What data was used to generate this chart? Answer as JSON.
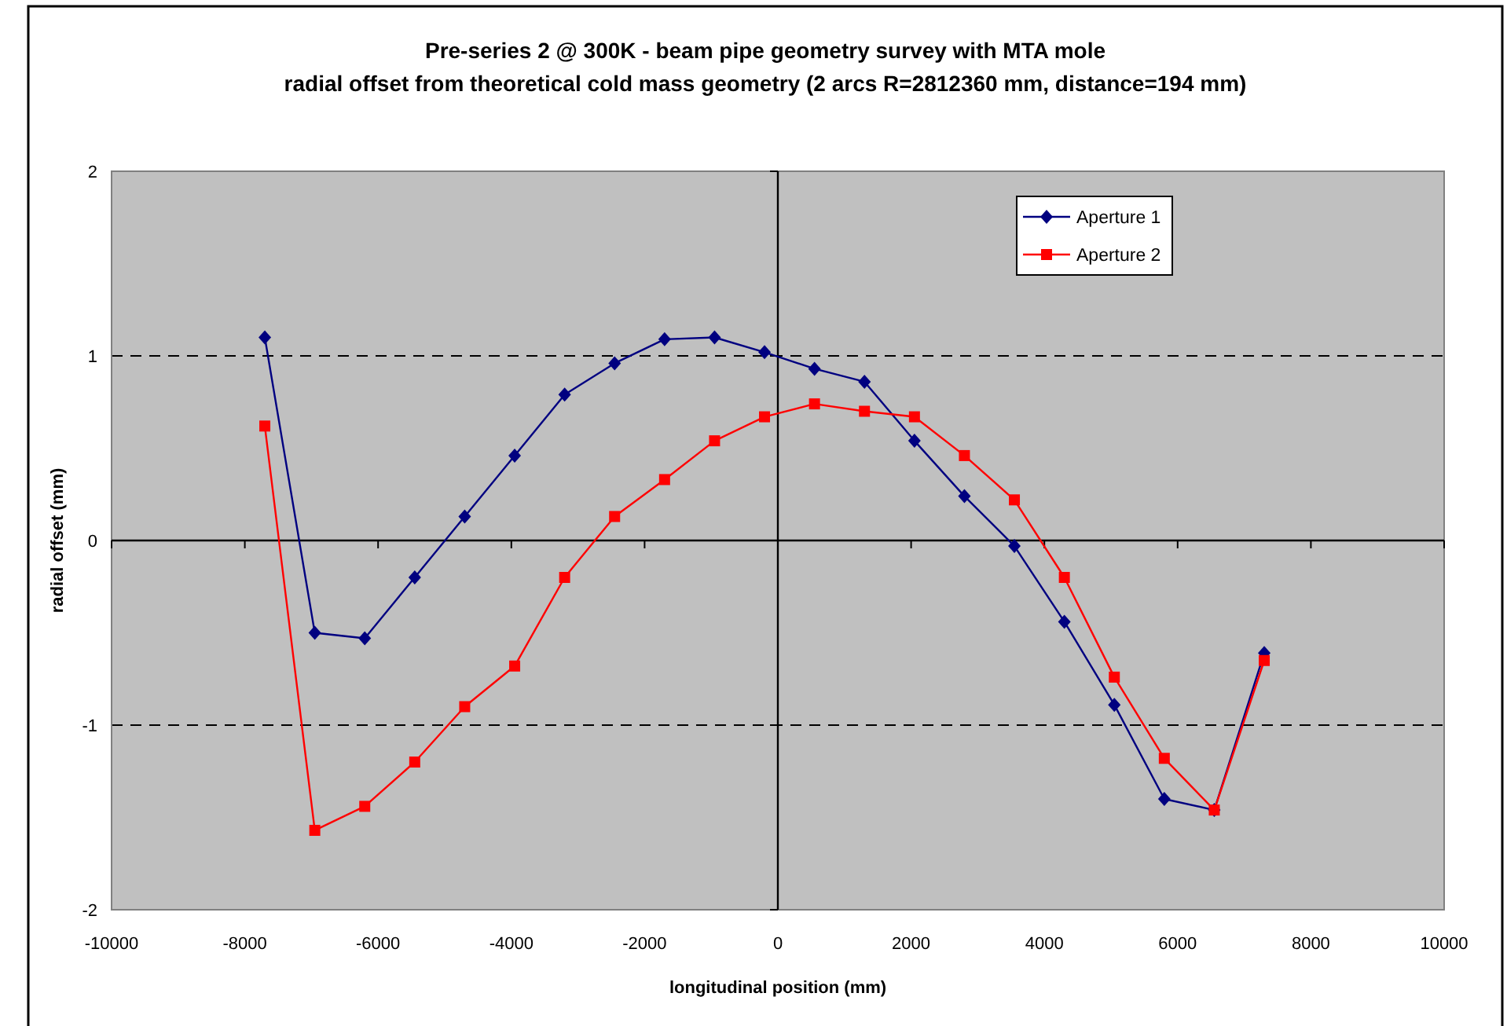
{
  "chart_data": {
    "type": "line",
    "title": "Pre-series 2 @ 300K - beam pipe geometry survey with MTA mole",
    "subtitle": "radial offset from theoretical cold mass geometry (2 arcs R=2812360 mm, distance=194 mm)",
    "xlabel": "longitudinal position (mm)",
    "ylabel": "radial offset (mm)",
    "x": [
      -7700,
      -6950,
      -6200,
      -5450,
      -4700,
      -3950,
      -3200,
      -2450,
      -1700,
      -950,
      -200,
      550,
      1300,
      2050,
      2800,
      3550,
      4300,
      5050,
      5800,
      6550,
      7300
    ],
    "series": [
      {
        "name": "Aperture 1",
        "color": "#000080",
        "marker": "diamond",
        "values": [
          1.1,
          -0.5,
          -0.53,
          -0.2,
          0.13,
          0.46,
          0.79,
          0.96,
          1.09,
          1.1,
          1.02,
          0.93,
          0.86,
          0.54,
          0.24,
          -0.03,
          -0.44,
          -0.89,
          -1.4,
          -1.46,
          -0.61
        ]
      },
      {
        "name": "Aperture 2",
        "color": "#ff0000",
        "marker": "square",
        "values": [
          0.62,
          -1.57,
          -1.44,
          -1.2,
          -0.9,
          -0.68,
          -0.2,
          0.13,
          0.33,
          0.54,
          0.67,
          0.74,
          0.7,
          0.67,
          0.46,
          0.22,
          -0.2,
          -0.74,
          -1.18,
          -1.46,
          -0.65
        ]
      }
    ],
    "xlim": [
      -10000,
      10000
    ],
    "xticks": [
      -10000,
      -8000,
      -6000,
      -4000,
      -2000,
      0,
      2000,
      4000,
      6000,
      8000,
      10000
    ],
    "ylim": [
      -2,
      2
    ],
    "yticks": [
      -2,
      -1,
      0,
      1,
      2
    ],
    "grid": "y",
    "legend": "top right",
    "ref_lines": [
      {
        "axis": "x",
        "value": 0,
        "color": "#000000"
      }
    ]
  }
}
